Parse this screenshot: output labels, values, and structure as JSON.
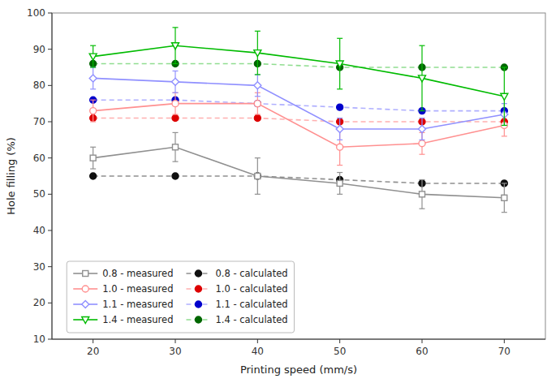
{
  "chart_data": {
    "type": "line",
    "xlabel": "Printing speed (mm/s)",
    "ylabel": "Hole filling (%)",
    "x": [
      20,
      30,
      40,
      50,
      60,
      70
    ],
    "xlim": [
      15,
      75
    ],
    "xticks": [
      20,
      30,
      40,
      50,
      60,
      70
    ],
    "ylim": [
      10,
      100
    ],
    "yticks": [
      10,
      20,
      30,
      40,
      50,
      60,
      70,
      80,
      90,
      100
    ],
    "grid": false,
    "legend": "lower left",
    "series": [
      {
        "name": "0.8 - measured",
        "color": "#909090",
        "marker": "square",
        "line_style": "solid",
        "values": [
          60,
          63,
          55,
          53,
          50,
          49
        ],
        "errors": [
          3,
          4,
          5,
          3,
          4,
          4
        ]
      },
      {
        "name": "0.8 - calculated",
        "color": "#909090",
        "colors": [
          "#101010",
          "#101010",
          "#101010",
          "#101010",
          "#101010",
          "#101010"
        ],
        "marker": "circle",
        "line_style": "dashed",
        "values": [
          55,
          55,
          55,
          54,
          53,
          53
        ]
      },
      {
        "name": "1.0 - measured",
        "color": "#FF9090",
        "marker": "circle",
        "line_style": "solid",
        "values": [
          73,
          75,
          75,
          63,
          64,
          69
        ],
        "errors": [
          3,
          3,
          3,
          5,
          3,
          3
        ]
      },
      {
        "name": "1.0 - calculated",
        "color": "#FFB0B0",
        "colors": [
          "#DD0000",
          "#DD0000",
          "#DD0000",
          "#DD0000",
          "#DD0000",
          "#DD0000"
        ],
        "marker": "circle",
        "line_style": "dashed",
        "values": [
          71,
          71,
          71,
          70,
          70,
          70
        ]
      },
      {
        "name": "1.1 - measured",
        "color": "#9090FF",
        "marker": "diamond",
        "line_style": "solid",
        "values": [
          82,
          81,
          80,
          68,
          68,
          72
        ],
        "errors": [
          3,
          3,
          3,
          3,
          3,
          3
        ]
      },
      {
        "name": "1.1 - calculated",
        "color": "#B0B0FF",
        "colors": [
          "#0000CC",
          "#0000CC",
          "#0000CC",
          "#0000CC",
          "#0000CC",
          "#0000CC"
        ],
        "marker": "circle",
        "line_style": "dashed",
        "values": [
          76,
          76,
          75,
          74,
          73,
          73
        ]
      },
      {
        "name": "1.4 - measured",
        "color": "#00BB00",
        "marker": "triangle-down",
        "line_style": "solid",
        "values": [
          88,
          91,
          89,
          86,
          82,
          77
        ],
        "errors": [
          3,
          5,
          6,
          7,
          9,
          8
        ]
      },
      {
        "name": "1.4 - calculated",
        "color": "#90DD90",
        "colors": [
          "#006600",
          "#006600",
          "#006600",
          "#006600",
          "#006600",
          "#006600"
        ],
        "marker": "circle",
        "line_style": "dashed",
        "values": [
          86,
          86,
          86,
          85,
          85,
          85
        ]
      }
    ]
  }
}
